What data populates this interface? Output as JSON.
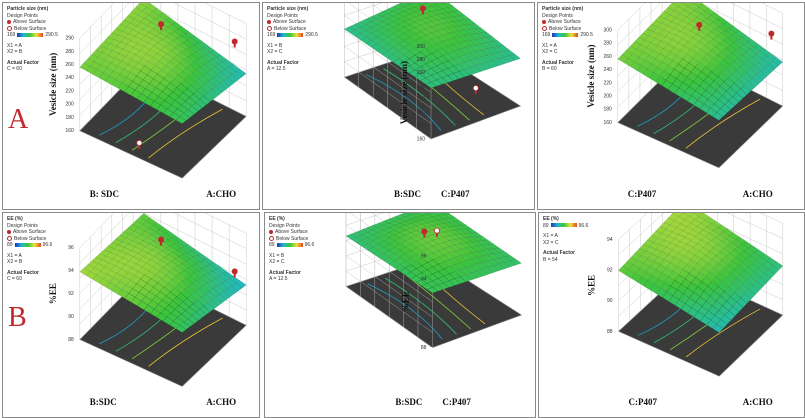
{
  "row_labels": [
    "A",
    "B"
  ],
  "panels": [
    {
      "legend": {
        "title": "Particle size (nm)",
        "design_points": "Design Points",
        "above": "Above Surface",
        "below": "Below Surface",
        "range_low": "169",
        "range_high": "290.5",
        "factors": [
          "X1 = A",
          "X2 = B"
        ],
        "actual_factor_title": "Actual Factor",
        "actual_factor": "C = 60"
      },
      "zlabel": "Vesicle size (nm)",
      "left_axis": "B: SDC",
      "right_axis": "A:CHO",
      "zticks": [
        "290",
        "280",
        "260",
        "240",
        "220",
        "200",
        "180",
        "160"
      ]
    },
    {
      "legend": {
        "title": "Particle size (nm)",
        "design_points": "Design Points",
        "above": "Above Surface",
        "below": "Below Surface",
        "range_low": "169",
        "range_high": "290.5",
        "factors": [
          "X1 = B",
          "X2 = C"
        ],
        "actual_factor_title": "Actual Factor",
        "actual_factor": "A = 12.5"
      },
      "zlabel": "Vesicle size (nm)",
      "left_axis": "C:P407",
      "right_axis": "B:SDC",
      "zticks": [
        "300",
        "280",
        "260",
        "240",
        "220",
        "200",
        "180",
        "160"
      ]
    },
    {
      "legend": {
        "title": "Particle size (nm)",
        "design_points": "Design Points",
        "above": "Above Surface",
        "below": "Below Surface",
        "range_low": "169",
        "range_high": "290.5",
        "factors": [
          "X1 = A",
          "X2 = C"
        ],
        "actual_factor_title": "Actual Factor",
        "actual_factor": "B = 60"
      },
      "zlabel": "Vesicle size (nm)",
      "left_axis": "C:P407",
      "right_axis": "A:CHO",
      "zticks": [
        "300",
        "280",
        "260",
        "240",
        "220",
        "200",
        "180",
        "160"
      ]
    },
    {
      "legend": {
        "title": "EE (%)",
        "design_points": "Design Points",
        "above": "Above Surface",
        "below": "Below Surface",
        "range_low": "89",
        "range_high": "96.6",
        "factors": [
          "X1 = A",
          "X2 = B"
        ],
        "actual_factor_title": "Actual Factor",
        "actual_factor": "C = 60"
      },
      "zlabel": "%EE",
      "left_axis": "B:SDC",
      "right_axis": "A:CHO",
      "zticks": [
        "96",
        "94",
        "92",
        "90",
        "88"
      ]
    },
    {
      "legend": {
        "title": "EE (%)",
        "design_points": "Design Points",
        "above": "Above Surface",
        "below": "Below Surface",
        "range_low": "89",
        "range_high": "96.6",
        "factors": [
          "X1 = B",
          "X2 = C"
        ],
        "actual_factor_title": "Actual Factor",
        "actual_factor": "A = 12.5"
      },
      "zlabel": "%EE",
      "left_axis": "C:P407",
      "right_axis": "B:SDC",
      "zticks": [
        "96",
        "94",
        "92",
        "90",
        "88"
      ]
    },
    {
      "legend": {
        "title": "EE (%)",
        "design_points": "",
        "above": "",
        "below": "",
        "range_low": "89",
        "range_high": "96.6",
        "factors": [
          "X1 = A",
          "X2 = C"
        ],
        "actual_factor_title": "Actual Factor",
        "actual_factor": "B = 54"
      },
      "zlabel": "%EE",
      "left_axis": "C:P407",
      "right_axis": "A:CHO",
      "zticks": [
        "94",
        "92",
        "90",
        "88"
      ]
    }
  ],
  "chart_data": [
    {
      "type": "surface",
      "title": "Particle size (nm)",
      "zlabel": "Vesicle size (nm)",
      "xlabel": "A:CHO",
      "ylabel": "B: SDC",
      "zlim": [
        160,
        290
      ],
      "design_points": [
        {
          "status": "above",
          "z": 290
        },
        {
          "status": "above",
          "z": 270
        },
        {
          "status": "below",
          "z": 175
        }
      ]
    },
    {
      "type": "surface",
      "title": "Particle size (nm)",
      "zlabel": "Vesicle size (nm)",
      "xlabel": "B:SDC",
      "ylabel": "C:P407",
      "zlim": [
        160,
        300
      ],
      "design_points": [
        {
          "status": "above",
          "z": 285
        },
        {
          "status": "above",
          "z": 265
        },
        {
          "status": "below",
          "z": 205
        }
      ]
    },
    {
      "type": "surface",
      "title": "Particle size (nm)",
      "zlabel": "Vesicle size (nm)",
      "xlabel": "A:CHO",
      "ylabel": "C:P407",
      "zlim": [
        160,
        300
      ],
      "design_points": [
        {
          "status": "above",
          "z": 285
        },
        {
          "status": "above",
          "z": 275
        }
      ]
    },
    {
      "type": "surface",
      "title": "EE (%)",
      "zlabel": "%EE",
      "xlabel": "A:CHO",
      "ylabel": "B:SDC",
      "zlim": [
        88,
        96
      ],
      "design_points": [
        {
          "status": "above",
          "z": 95.5
        },
        {
          "status": "above",
          "z": 93
        }
      ]
    },
    {
      "type": "surface",
      "title": "EE (%)",
      "zlabel": "%EE",
      "xlabel": "B:SDC",
      "ylabel": "C:P407",
      "zlim": [
        88,
        96
      ],
      "design_points": [
        {
          "status": "above",
          "z": 94
        },
        {
          "status": "below",
          "z": 91
        }
      ]
    },
    {
      "type": "surface",
      "title": "EE (%)",
      "zlabel": "%EE",
      "xlabel": "A:CHO",
      "ylabel": "C:P407",
      "zlim": [
        88,
        94
      ],
      "design_points": []
    }
  ]
}
